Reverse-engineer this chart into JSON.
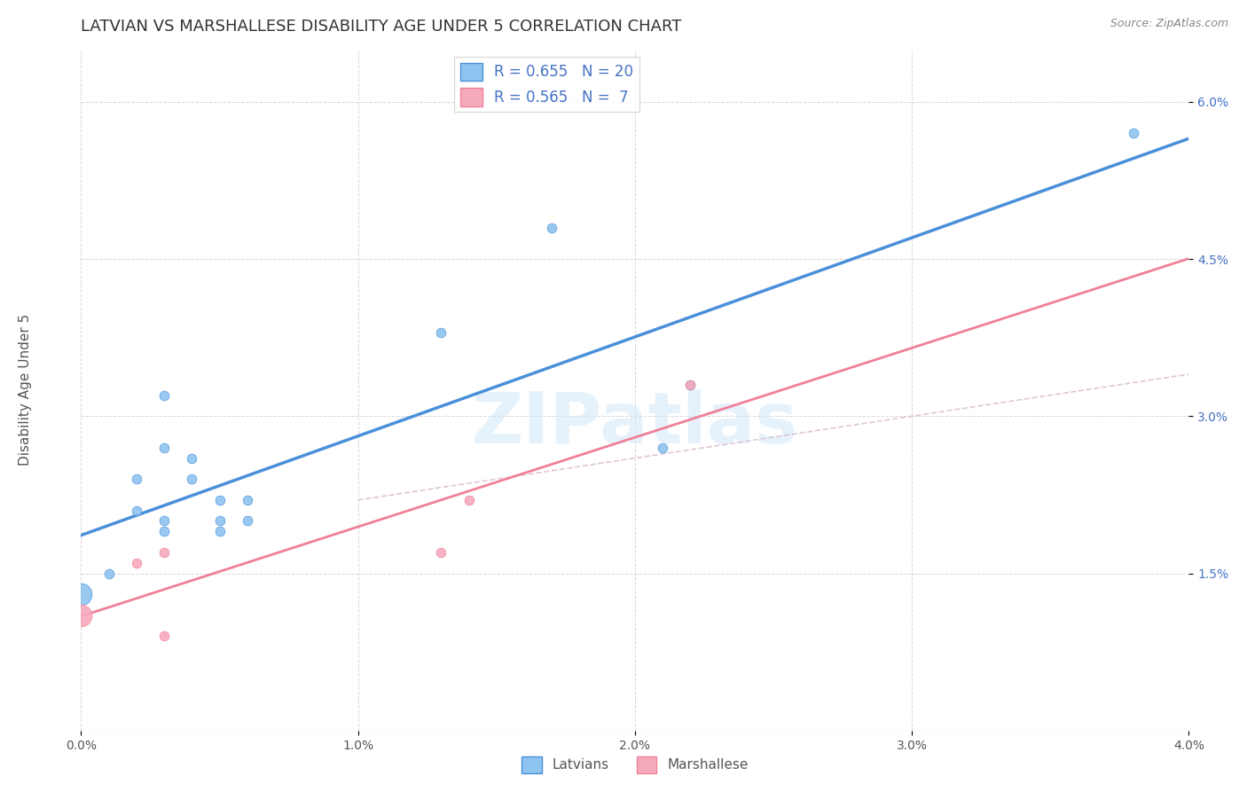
{
  "title": "LATVIAN VS MARSHALLESE DISABILITY AGE UNDER 5 CORRELATION CHART",
  "source": "Source: ZipAtlas.com",
  "ylabel": "Disability Age Under 5",
  "xlabel": "",
  "xlim": [
    0.0,
    0.04
  ],
  "ylim_left": [
    0.0,
    0.065
  ],
  "yticks": [
    0.015,
    0.03,
    0.045,
    0.06
  ],
  "ytick_labels": [
    "1.5%",
    "3.0%",
    "4.5%",
    "6.0%"
  ],
  "xticks": [
    0.0,
    0.01,
    0.02,
    0.03,
    0.04
  ],
  "xtick_labels": [
    "0.0%",
    "1.0%",
    "2.0%",
    "3.0%",
    "4.0%"
  ],
  "latvian_color": "#8ec4f0",
  "marshallese_color": "#f5aabc",
  "latvian_line_color": "#4a90d9",
  "marshallese_line_color": "#f08098",
  "dashed_line_color": "#d8b8d0",
  "legend_text_color": "#4472c4",
  "latvian_R": 0.655,
  "latvian_N": 20,
  "marshallese_R": 0.565,
  "marshallese_N": 7,
  "latvian_x": [
    0.0,
    0.001,
    0.002,
    0.002,
    0.003,
    0.003,
    0.003,
    0.003,
    0.004,
    0.004,
    0.005,
    0.005,
    0.005,
    0.006,
    0.006,
    0.013,
    0.017,
    0.021,
    0.022,
    0.038
  ],
  "latvian_y": [
    0.013,
    0.015,
    0.021,
    0.024,
    0.019,
    0.02,
    0.027,
    0.032,
    0.024,
    0.026,
    0.019,
    0.02,
    0.022,
    0.02,
    0.022,
    0.038,
    0.048,
    0.027,
    0.033,
    0.057
  ],
  "marshallese_x": [
    0.0,
    0.002,
    0.003,
    0.003,
    0.013,
    0.014,
    0.022
  ],
  "marshallese_y": [
    0.011,
    0.016,
    0.009,
    0.017,
    0.017,
    0.022,
    0.033
  ],
  "latvian_large_x": [
    0.0
  ],
  "latvian_large_y": [
    0.013
  ],
  "marshallese_large_x": [
    0.0
  ],
  "marshallese_large_y": [
    0.011
  ],
  "watermark": "ZIPatlas",
  "background_color": "#ffffff",
  "grid_color": "#d8d8d8",
  "title_fontsize": 13,
  "axis_label_fontsize": 11,
  "tick_fontsize": 10,
  "legend_fontsize": 12,
  "dot_size": 60,
  "large_dot_size": 320
}
